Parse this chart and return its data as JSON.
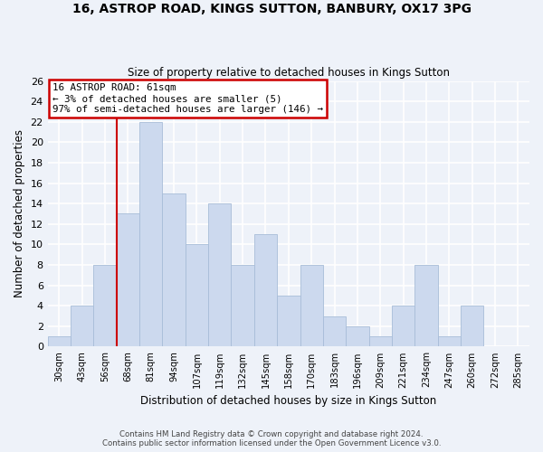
{
  "title": "16, ASTROP ROAD, KINGS SUTTON, BANBURY, OX17 3PG",
  "subtitle": "Size of property relative to detached houses in Kings Sutton",
  "xlabel": "Distribution of detached houses by size in Kings Sutton",
  "ylabel": "Number of detached properties",
  "bar_color": "#ccd9ee",
  "bar_edge_color": "#a8bdd8",
  "categories": [
    "30sqm",
    "43sqm",
    "56sqm",
    "68sqm",
    "81sqm",
    "94sqm",
    "107sqm",
    "119sqm",
    "132sqm",
    "145sqm",
    "158sqm",
    "170sqm",
    "183sqm",
    "196sqm",
    "209sqm",
    "221sqm",
    "234sqm",
    "247sqm",
    "260sqm",
    "272sqm",
    "285sqm"
  ],
  "values": [
    1,
    4,
    8,
    13,
    22,
    15,
    10,
    14,
    8,
    11,
    5,
    8,
    3,
    2,
    1,
    4,
    8,
    1,
    4,
    0,
    0
  ],
  "ylim": [
    0,
    26
  ],
  "yticks": [
    0,
    2,
    4,
    6,
    8,
    10,
    12,
    14,
    16,
    18,
    20,
    22,
    24,
    26
  ],
  "red_line_index": 3,
  "marker_color": "#cc0000",
  "annotation_title": "16 ASTROP ROAD: 61sqm",
  "annotation_line1": "← 3% of detached houses are smaller (5)",
  "annotation_line2": "97% of semi-detached houses are larger (146) →",
  "footer1": "Contains HM Land Registry data © Crown copyright and database right 2024.",
  "footer2": "Contains public sector information licensed under the Open Government Licence v3.0.",
  "background_color": "#eef2f9",
  "plot_bg_color": "#eef2f9",
  "grid_color": "#d0d8e8"
}
